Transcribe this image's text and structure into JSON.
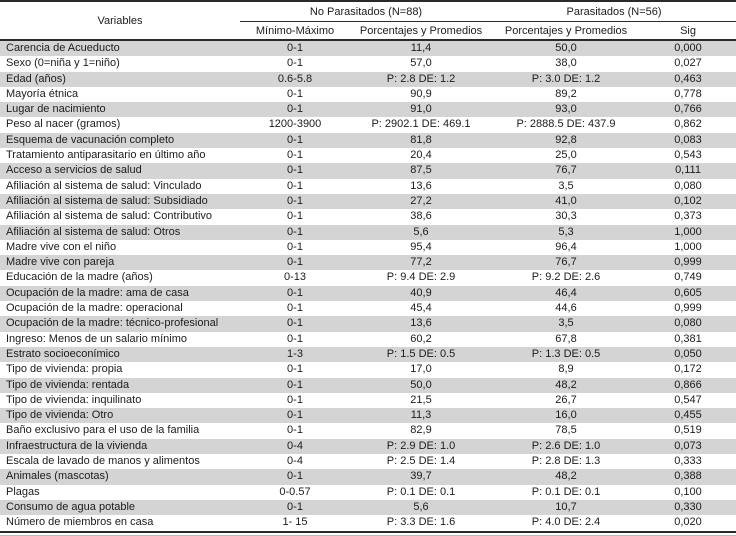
{
  "colors": {
    "stripe": "#d4d4d4",
    "border": "#2a2a2a",
    "text": "#1c1c1c"
  },
  "table": {
    "header": {
      "variables_label": "Variables",
      "groups": [
        {
          "label": "No Parasitados (N=88)",
          "columns": [
            "Mínimo-Máximo",
            "Porcentajes y Promedios"
          ]
        },
        {
          "label": "Parasitados (N=56)",
          "columns": [
            "Porcentajes y Promedios",
            "Sig"
          ]
        }
      ]
    },
    "rows": [
      {
        "variable": "Carencia de Acueducto",
        "min_max": "0-1",
        "no_parasitados": "11,4",
        "parasitados": "50,0",
        "sig": "0,000"
      },
      {
        "variable": "Sexo (0=niña y 1=niño)",
        "min_max": "0-1",
        "no_parasitados": "57,0",
        "parasitados": "38,0",
        "sig": "0,027"
      },
      {
        "variable": "Edad (años)",
        "min_max": "0.6-5.8",
        "no_parasitados": "P: 2.8 DE: 1.2",
        "parasitados": "P: 3.0 DE: 1.2",
        "sig": "0,463"
      },
      {
        "variable": "Mayoría étnica",
        "min_max": "0-1",
        "no_parasitados": "90,9",
        "parasitados": "89,2",
        "sig": "0,778"
      },
      {
        "variable": "Lugar de nacimiento",
        "min_max": "0-1",
        "no_parasitados": "91,0",
        "parasitados": "93,0",
        "sig": "0,766"
      },
      {
        "variable": "Peso al nacer (gramos)",
        "min_max": "1200-3900",
        "no_parasitados": "P: 2902.1 DE: 469.1",
        "parasitados": "P: 2888.5 DE: 437.9",
        "sig": "0,862"
      },
      {
        "variable": "Esquema de vacunación completo",
        "min_max": "0-1",
        "no_parasitados": "81,8",
        "parasitados": "92,8",
        "sig": "0,083"
      },
      {
        "variable": "Tratamiento antiparasitario en último año",
        "min_max": "0-1",
        "no_parasitados": "20,4",
        "parasitados": "25,0",
        "sig": "0,543"
      },
      {
        "variable": "Acceso a  servicios de salud",
        "min_max": "0-1",
        "no_parasitados": "87,5",
        "parasitados": "76,7",
        "sig": "0,111"
      },
      {
        "variable": "Afiliación al sistema de salud: Vinculado",
        "min_max": "0-1",
        "no_parasitados": "13,6",
        "parasitados": "3,5",
        "sig": "0,080"
      },
      {
        "variable": "Afiliación al sistema de salud: Subsidiado",
        "min_max": "0-1",
        "no_parasitados": "27,2",
        "parasitados": "41,0",
        "sig": "0,102"
      },
      {
        "variable": "Afiliación al sistema de salud: Contributivo",
        "min_max": "0-1",
        "no_parasitados": "38,6",
        "parasitados": "30,3",
        "sig": "0,373"
      },
      {
        "variable": "Afiliación al sistema de salud: Otros",
        "min_max": "0-1",
        "no_parasitados": "5,6",
        "parasitados": "5,3",
        "sig": "1,000"
      },
      {
        "variable": "Madre vive con el niño",
        "min_max": "0-1",
        "no_parasitados": "95,4",
        "parasitados": "96,4",
        "sig": "1,000"
      },
      {
        "variable": "Madre vive con pareja",
        "min_max": "0-1",
        "no_parasitados": "77,2",
        "parasitados": "76,7",
        "sig": "0,999"
      },
      {
        "variable": "Educación de la madre (años)",
        "min_max": "0-13",
        "no_parasitados": "P: 9.4 DE: 2.9",
        "parasitados": "P: 9.2 DE: 2.6",
        "sig": "0,749"
      },
      {
        "variable": "Ocupación de la madre: ama de casa",
        "min_max": "0-1",
        "no_parasitados": "40,9",
        "parasitados": "46,4",
        "sig": "0,605"
      },
      {
        "variable": "Ocupación de la madre: operacional",
        "min_max": "0-1",
        "no_parasitados": "45,4",
        "parasitados": "44,6",
        "sig": "0,999"
      },
      {
        "variable": "Ocupación de la madre: técnico-profesional",
        "min_max": "0-1",
        "no_parasitados": "13,6",
        "parasitados": "3,5",
        "sig": "0,080"
      },
      {
        "variable": "Ingreso: Menos de un salario mínimo",
        "min_max": "0-1",
        "no_parasitados": "60,2",
        "parasitados": "67,8",
        "sig": "0,381"
      },
      {
        "variable": "Estrato socioeconímico",
        "min_max": "1-3",
        "no_parasitados": "P: 1.5 DE: 0.5",
        "parasitados": "P: 1.3 DE:  0.5",
        "sig": "0,050"
      },
      {
        "variable": "Tipo de vivienda: propia",
        "min_max": "0-1",
        "no_parasitados": "17,0",
        "parasitados": "8,9",
        "sig": "0,172"
      },
      {
        "variable": "Tipo de vivienda: rentada",
        "min_max": "0-1",
        "no_parasitados": "50,0",
        "parasitados": "48,2",
        "sig": "0,866"
      },
      {
        "variable": "Tipo de vivienda: inquilinato",
        "min_max": "0-1",
        "no_parasitados": "21,5",
        "parasitados": "26,7",
        "sig": "0,547"
      },
      {
        "variable": "Tipo de vivienda: Otro",
        "min_max": "0-1",
        "no_parasitados": "11,3",
        "parasitados": "16,0",
        "sig": "0,455"
      },
      {
        "variable": "Baño exclusivo para el uso de la familia",
        "min_max": "0-1",
        "no_parasitados": "82,9",
        "parasitados": "78,5",
        "sig": "0,519"
      },
      {
        "variable": "Infraestructura de la vivienda",
        "min_max": "0-4",
        "no_parasitados": "P: 2.9 DE: 1.0",
        "parasitados": "P: 2.6 DE: 1.0",
        "sig": "0,073"
      },
      {
        "variable": "Escala de lavado de manos y alimentos",
        "min_max": "0-4",
        "no_parasitados": "P: 2.5 DE: 1.4",
        "parasitados": "P: 2.8 DE: 1.3",
        "sig": "0,333"
      },
      {
        "variable": "Animales (mascotas)",
        "min_max": "0-1",
        "no_parasitados": "39,7",
        "parasitados": "48,2",
        "sig": "0,388"
      },
      {
        "variable": "Plagas",
        "min_max": "0-0.57",
        "no_parasitados": "P: 0.1 DE: 0.1",
        "parasitados": "P: 0.1 DE: 0.1",
        "sig": "0,100"
      },
      {
        "variable": "Consumo de agua potable",
        "min_max": "0-1",
        "no_parasitados": "5,6",
        "parasitados": "10,7",
        "sig": "0,330"
      },
      {
        "variable": "Número de miembros en casa",
        "min_max": "1- 15",
        "no_parasitados": "P: 3.3 DE: 1.6",
        "parasitados": "P: 4.0 DE: 2.4",
        "sig": "0,020"
      }
    ]
  }
}
